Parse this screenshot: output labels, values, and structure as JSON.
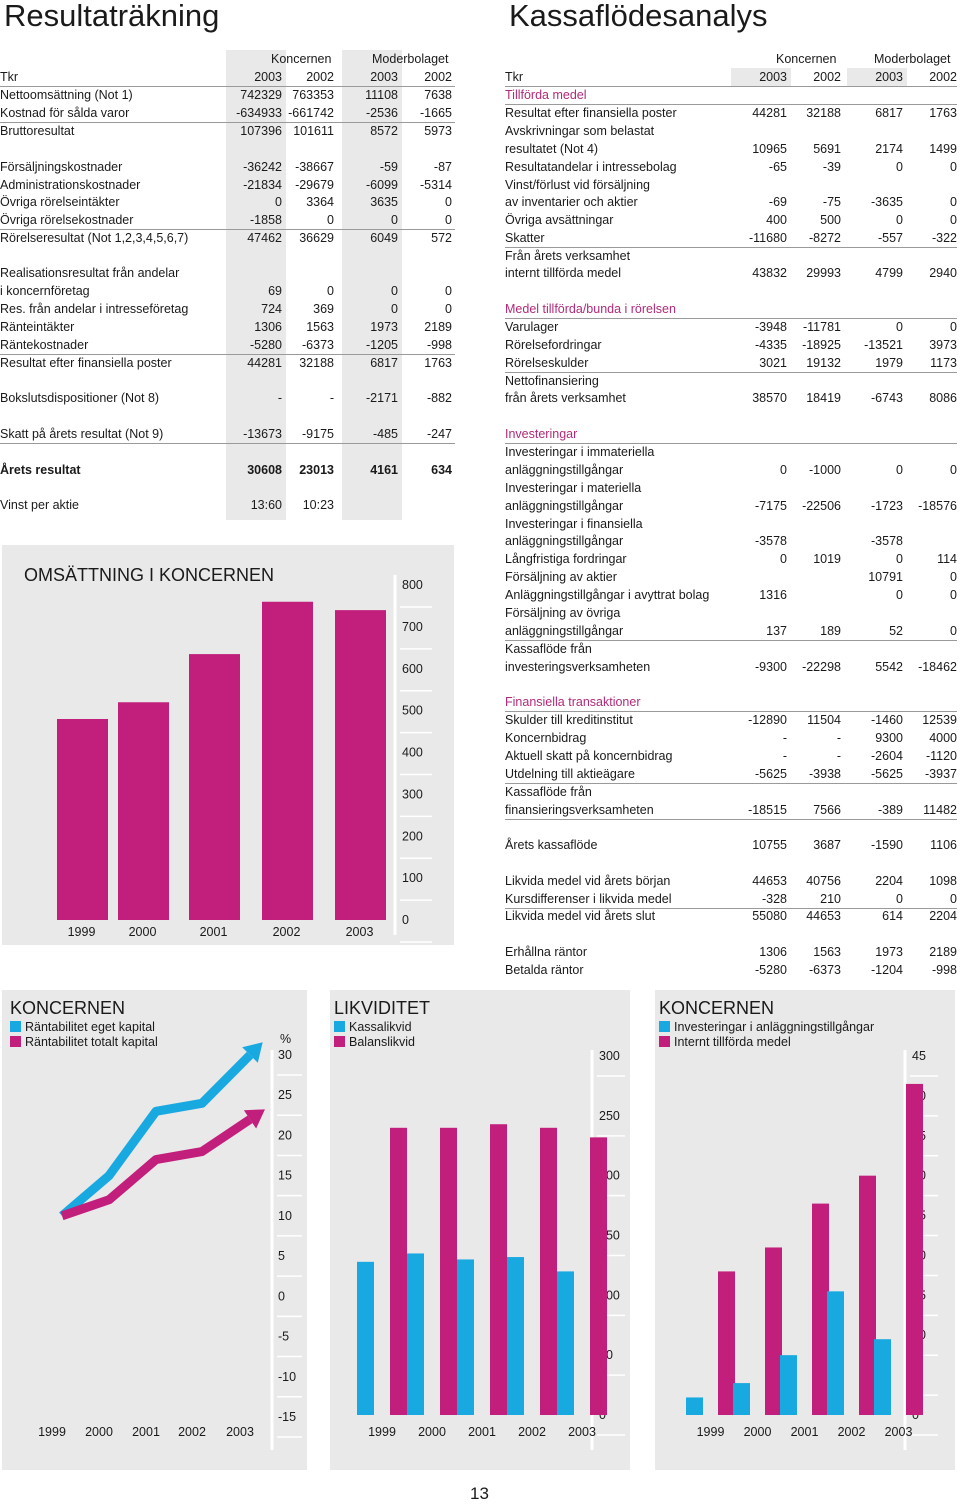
{
  "colors": {
    "magenta": "#c21f7c",
    "cyan": "#19a9e1",
    "grey": "#e9e9e9",
    "accent_text": "#b22a7a"
  },
  "left_title": "Resultaträkning",
  "right_title": "Kassaflödesanalys",
  "page_number": "13",
  "col_groups": {
    "koncernen": "Koncernen",
    "moderbolaget": "Moderbolaget"
  },
  "income": {
    "header": {
      "label": "Tkr",
      "values": [
        "2003",
        "2002",
        "2003",
        "2002"
      ]
    },
    "rows": [
      {
        "label": "Nettoomsättning (Not 1)",
        "values": [
          "742329",
          "763353",
          "11108",
          "7638"
        ]
      },
      {
        "label": "Kostnad för sålda varor",
        "values": [
          "-634933",
          "-661742",
          "-2536",
          "-1665"
        ],
        "ul": true
      },
      {
        "label": "Bruttoresultat",
        "values": [
          "107396",
          "101611",
          "8572",
          "5973"
        ]
      },
      {
        "label": "Försäljningskostnader",
        "values": [
          "-36242",
          "-38667",
          "-59",
          "-87"
        ]
      },
      {
        "label": "Administrationskostnader",
        "values": [
          "-21834",
          "-29679",
          "-6099",
          "-5314"
        ]
      },
      {
        "label": "Övriga rörelseintäkter",
        "values": [
          "0",
          "3364",
          "3635",
          "0"
        ]
      },
      {
        "label": "Övriga rörelsekostnader",
        "values": [
          "-1858",
          "0",
          "0",
          "0"
        ],
        "ul": true
      },
      {
        "label": "Rörelseresultat (Not 1,2,3,4,5,6,7)",
        "values": [
          "47462",
          "36629",
          "6049",
          "572"
        ]
      },
      {
        "label": "Realisationsresultat från andelar",
        "values": [
          "",
          "",
          "",
          ""
        ]
      },
      {
        "label": "i koncernföretag",
        "values": [
          "69",
          "0",
          "0",
          "0"
        ]
      },
      {
        "label": "Res. från andelar i intresseföretag",
        "values": [
          "724",
          "369",
          "0",
          "0"
        ]
      },
      {
        "label": "Ränteintäkter",
        "values": [
          "1306",
          "1563",
          "1973",
          "2189"
        ]
      },
      {
        "label": "Räntekostnader",
        "values": [
          "-5280",
          "-6373",
          "-1205",
          "-998"
        ],
        "ul": true
      },
      {
        "label": "Resultat efter finansiella poster",
        "values": [
          "44281",
          "32188",
          "6817",
          "1763"
        ]
      },
      {
        "label": "Bokslutsdispositioner (Not 8)",
        "values": [
          "-",
          "-",
          "-2171",
          "-882"
        ]
      },
      {
        "label": "Skatt på årets  resultat (Not 9)",
        "values": [
          "-13673",
          "-9175",
          "-485",
          "-247"
        ],
        "ul": true
      },
      {
        "label": "Årets resultat",
        "values": [
          "30608",
          "23013",
          "4161",
          "634"
        ],
        "bold": true
      },
      {
        "label": "Vinst per aktie",
        "values": [
          "13:60",
          "10:23",
          "",
          ""
        ]
      }
    ]
  },
  "cashflow": {
    "header": {
      "label": "Tkr",
      "values": [
        "2003",
        "2002",
        "2003",
        "2002"
      ]
    },
    "sections": {
      "tillforda": "Tillförda medel",
      "rorelsen": "Medel tillförda/bunda i rörelsen",
      "investeringar": "Investeringar",
      "finansiella": "Finansiella transaktioner"
    },
    "rows": [
      {
        "label": "Resultat efter finansiella poster",
        "values": [
          "44281",
          "32188",
          "6817",
          "1763"
        ]
      },
      {
        "label": "Avskrivningar som belastat",
        "values": [
          "",
          "",
          "",
          ""
        ]
      },
      {
        "label": "resultatet (Not 4)",
        "values": [
          "10965",
          "5691",
          "2174",
          "1499"
        ]
      },
      {
        "label": "Resultatandelar i intressebolag",
        "values": [
          "-65",
          "-39",
          "0",
          "0"
        ]
      },
      {
        "label": "Vinst/förlust vid försäljning",
        "values": [
          "",
          "",
          "",
          ""
        ]
      },
      {
        "label": "av inventarier och aktier",
        "values": [
          "-69",
          "-75",
          "-3635",
          "0"
        ]
      },
      {
        "label": "Övriga avsättningar",
        "values": [
          "400",
          "500",
          "0",
          "0"
        ]
      },
      {
        "label": "Skatter",
        "values": [
          "-11680",
          "-8272",
          "-557",
          "-322"
        ],
        "ul": true
      },
      {
        "label": "Från årets verksamhet",
        "values": [
          "",
          "",
          "",
          ""
        ]
      },
      {
        "label": "internt tillförda medel",
        "values": [
          "43832",
          "29993",
          "4799",
          "2940"
        ]
      },
      {
        "label": "Varulager",
        "values": [
          "-3948",
          "-11781",
          "0",
          "0"
        ]
      },
      {
        "label": "Rörelsefordringar",
        "values": [
          "-4335",
          "-18925",
          "-13521",
          "3973"
        ]
      },
      {
        "label": "Rörelseskulder",
        "values": [
          "3021",
          "19132",
          "1979",
          "1173"
        ],
        "ul": true
      },
      {
        "label": "Nettofinansiering",
        "values": [
          "",
          "",
          "",
          ""
        ]
      },
      {
        "label": "från årets verksamhet",
        "values": [
          "38570",
          "18419",
          "-6743",
          "8086"
        ]
      },
      {
        "label": "Investeringar i immateriella",
        "values": [
          "",
          "",
          "",
          ""
        ]
      },
      {
        "label": "anläggningstillgångar",
        "values": [
          "0",
          "-1000",
          "0",
          "0"
        ]
      },
      {
        "label": "Investeringar i materiella",
        "values": [
          "",
          "",
          "",
          ""
        ]
      },
      {
        "label": "anläggningstillgångar",
        "values": [
          "-7175",
          "-22506",
          "-1723",
          "-18576"
        ]
      },
      {
        "label": "Investeringar i finansiella",
        "values": [
          "",
          "",
          "",
          ""
        ]
      },
      {
        "label": "anläggningstillgångar",
        "values": [
          "-3578",
          "",
          "-3578",
          ""
        ]
      },
      {
        "label": "Långfristiga fordringar",
        "values": [
          "0",
          "1019",
          "0",
          "114"
        ]
      },
      {
        "label": "Försäljning av aktier",
        "values": [
          "",
          "",
          "10791",
          "0"
        ]
      },
      {
        "label": "Anläggningstillgångar i avyttrat bolag",
        "values": [
          "1316",
          "",
          "0",
          "0"
        ]
      },
      {
        "label": "Försäljning av övriga",
        "values": [
          "",
          "",
          "",
          ""
        ]
      },
      {
        "label": "anläggningstillgångar",
        "values": [
          "137",
          "189",
          "52",
          "0"
        ],
        "ul": true
      },
      {
        "label": "Kassaflöde från",
        "values": [
          "",
          "",
          "",
          ""
        ]
      },
      {
        "label": "investeringsverksamheten",
        "values": [
          "-9300",
          "-22298",
          "5542",
          "-18462"
        ]
      },
      {
        "label": "Skulder till kreditinstitut",
        "values": [
          "-12890",
          "11504",
          "-1460",
          "12539"
        ]
      },
      {
        "label": "Koncernbidrag",
        "values": [
          "-",
          "-",
          "9300",
          "4000"
        ]
      },
      {
        "label": "Aktuell skatt på koncernbidrag",
        "values": [
          "-",
          "-",
          "-2604",
          "-1120"
        ]
      },
      {
        "label": "Utdelning till aktieägare",
        "values": [
          "-5625",
          "-3938",
          "-5625",
          "-3937"
        ],
        "ul": true
      },
      {
        "label": "Kassaflöde från",
        "values": [
          "",
          "",
          "",
          ""
        ]
      },
      {
        "label": "finansieringsverksamheten",
        "values": [
          "-18515",
          "7566",
          "-389",
          "11482"
        ],
        "ul": true
      },
      {
        "label": "Årets kassaflöde",
        "values": [
          "10755",
          "3687",
          "-1590",
          "1106"
        ]
      },
      {
        "label": "Likvida medel vid årets början",
        "values": [
          "44653",
          "40756",
          "2204",
          "1098"
        ]
      },
      {
        "label": "Kursdifferenser i likvida medel",
        "values": [
          "-328",
          "210",
          "0",
          "0"
        ],
        "ul": true
      },
      {
        "label": "Likvida medel vid årets slut",
        "values": [
          "55080",
          "44653",
          "614",
          "2204"
        ]
      },
      {
        "label": "Erhållna räntor",
        "values": [
          "1306",
          "1563",
          "1973",
          "2189"
        ]
      },
      {
        "label": "Betalda räntor",
        "values": [
          "-5280",
          "-6373",
          "-1204",
          "-998"
        ]
      }
    ]
  },
  "chart_data": [
    {
      "type": "bar",
      "title": "OMSÄTTNING I KONCERNEN",
      "categories": [
        "1999",
        "2000",
        "2001",
        "2002",
        "2003"
      ],
      "series": [
        {
          "values": [
            480,
            520,
            635,
            760,
            740
          ]
        }
      ],
      "ylim": [
        0,
        800
      ],
      "yticks": [
        "800",
        "700",
        "600",
        "500",
        "400",
        "300",
        "200",
        "100",
        "0"
      ],
      "grid": false
    },
    {
      "type": "line",
      "title": "KONCERNEN",
      "ylabel": "%",
      "categories": [
        "1999",
        "2000",
        "2001",
        "2002",
        "2003"
      ],
      "series": [
        {
          "name": "Räntabilitet eget kapital",
          "values": [
            10,
            15,
            23,
            24,
            30
          ]
        },
        {
          "name": "Räntabilitet totalt kapital",
          "values": [
            10,
            12,
            17,
            18,
            22
          ]
        }
      ],
      "ylim": [
        -15,
        30
      ],
      "yticks": [
        "30",
        "25",
        "20",
        "15",
        "10",
        "5",
        "0",
        "-5",
        "-10",
        "-15"
      ],
      "legend": "top-left"
    },
    {
      "type": "bar",
      "title": "LIKVIDITET",
      "categories": [
        "1999",
        "2000",
        "2001",
        "2002",
        "2003"
      ],
      "series": [
        {
          "name": "Kassalikvid",
          "values": [
            128,
            135,
            130,
            132,
            120
          ]
        },
        {
          "name": "Balanslikvid",
          "values": [
            240,
            240,
            243,
            240,
            232
          ]
        }
      ],
      "ylim": [
        0,
        300
      ],
      "yticks": [
        "300",
        "250",
        "200",
        "150",
        "100",
        "50",
        "0"
      ],
      "legend": "top-left"
    },
    {
      "type": "bar",
      "title": "KONCERNEN",
      "categories": [
        "1999",
        "2000",
        "2001",
        "2002",
        "2003"
      ],
      "series": [
        {
          "name": "Investeringar i anläggningstillgångar",
          "values": [
            2.2,
            4,
            7.5,
            15.5,
            9.5
          ]
        },
        {
          "name": "Internt tillförda medel",
          "values": [
            18,
            21,
            26.5,
            30,
            41.5
          ]
        }
      ],
      "ylim": [
        0,
        45
      ],
      "yticks": [
        "45",
        "40",
        "35",
        "30",
        "25",
        "20",
        "15",
        "10",
        "5",
        "0"
      ],
      "legend": "top-left"
    }
  ]
}
